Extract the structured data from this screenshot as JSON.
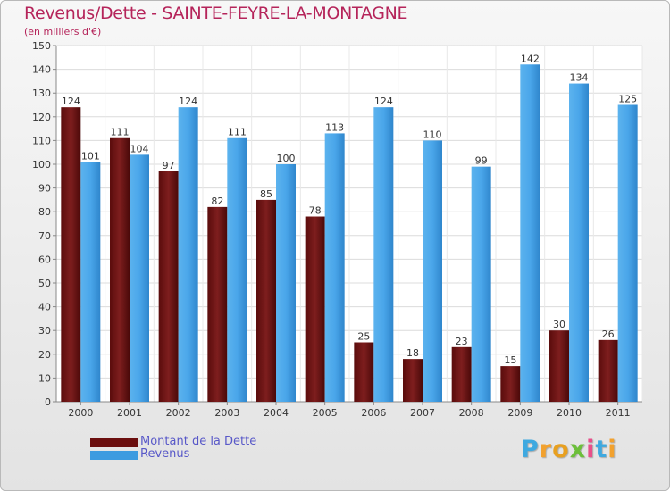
{
  "header": {
    "title": "Revenus/Dette - SAINTE-FEYRE-LA-MONTAGNE",
    "subtitle": "(en milliers d'€)"
  },
  "chart_data": {
    "type": "bar",
    "categories": [
      "2000",
      "2001",
      "2002",
      "2003",
      "2004",
      "2005",
      "2006",
      "2007",
      "2008",
      "2009",
      "2010",
      "2011"
    ],
    "series": [
      {
        "name": "Montant de la Dette",
        "color": "#8b1c1c",
        "values": [
          124,
          111,
          97,
          82,
          85,
          78,
          25,
          18,
          23,
          15,
          30,
          26
        ]
      },
      {
        "name": "Revenus",
        "color": "#3d9be0",
        "values": [
          101,
          104,
          124,
          111,
          100,
          113,
          124,
          110,
          99,
          142,
          134,
          125
        ]
      }
    ],
    "ylim": [
      0,
      150
    ],
    "yticks": [
      0,
      10,
      20,
      30,
      40,
      50,
      60,
      70,
      80,
      90,
      100,
      110,
      120,
      130,
      140,
      150
    ],
    "grid": true,
    "legend_position": "bottom-left"
  },
  "legend": {
    "items": [
      {
        "label": "Montant de la Dette",
        "color": "#6b0f0f"
      },
      {
        "label": "Revenus",
        "color": "#3d9be0"
      }
    ]
  },
  "logo": {
    "letters": [
      "P",
      "r",
      "o",
      "x",
      "i",
      "t",
      "i"
    ],
    "colors": [
      "#3fa9e0",
      "#f2a12e",
      "#e8a020",
      "#6cbf3a",
      "#e84f8a",
      "#3fa9e0",
      "#f2a12e"
    ]
  }
}
